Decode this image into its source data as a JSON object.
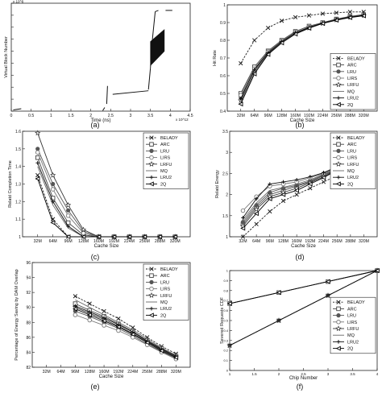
{
  "chart_data": [
    {
      "id": "a",
      "type": "line",
      "caption": "(a)",
      "xlabel": "Time (ns)",
      "ylabel": "Virtual Block Number",
      "x_exponent": "x 10^12",
      "y_exponent": "x 10^8",
      "xlim": [
        0,
        4.5
      ],
      "ylim": [
        0,
        4.5
      ],
      "xticks": [
        "0",
        "0.5",
        "1",
        "1.5",
        "2",
        "2.5",
        "3",
        "3.5",
        "4",
        "4.5"
      ],
      "yticks": [
        "0",
        "0.5",
        "1",
        "1.5",
        "2",
        "2.5",
        "3",
        "3.5",
        "4",
        "4.5"
      ],
      "tick_values": [
        0,
        0.5,
        1,
        1.5,
        2,
        2.5,
        3,
        3.5,
        4,
        4.5
      ],
      "segments": [
        [
          [
            0.05,
            0.05
          ],
          [
            0.25,
            0.1
          ]
        ],
        [
          [
            2.3,
            0.02
          ],
          [
            2.35,
            0.15
          ]
        ],
        [
          [
            2.4,
            0.3
          ],
          [
            2.42,
            1.05
          ]
        ],
        [
          [
            2.55,
            0.7
          ],
          [
            3.45,
            0.85
          ]
        ],
        [
          [
            3.45,
            0.9
          ],
          [
            3.5,
            1.8
          ]
        ],
        [
          [
            3.5,
            1.8
          ],
          [
            3.55,
            3.0
          ]
        ],
        [
          [
            3.55,
            3.0
          ],
          [
            3.62,
            4.15
          ]
        ],
        [
          [
            3.62,
            4.15
          ],
          [
            3.7,
            4.2
          ]
        ],
        [
          [
            3.88,
            4.2
          ],
          [
            4.05,
            4.2
          ]
        ]
      ],
      "dense_band": [
        [
          3.5,
          2.9
        ],
        [
          3.85,
          3.4
        ],
        [
          3.85,
          2.5
        ],
        [
          3.5,
          1.9
        ]
      ]
    },
    {
      "id": "b",
      "type": "line",
      "caption": "(b)",
      "xlabel": "Cache Size",
      "ylabel": "Hit Rate",
      "categories": [
        "32M",
        "64M",
        "96M",
        "128M",
        "160M",
        "192M",
        "224M",
        "256M",
        "288M",
        "320M"
      ],
      "ylim": [
        0.4,
        1.0
      ],
      "yticks": [
        "0.4",
        "0.5",
        "0.6",
        "0.7",
        "0.8",
        "0.9",
        "1"
      ],
      "tick_values": [
        0.4,
        0.5,
        0.6,
        0.7,
        0.8,
        0.9,
        1.0
      ],
      "legend_position": "lower-right",
      "series": [
        {
          "name": "BELADY",
          "values": [
            0.67,
            0.8,
            0.87,
            0.91,
            0.93,
            0.94,
            0.95,
            0.955,
            0.96,
            0.96
          ]
        },
        {
          "name": "ARC",
          "values": [
            0.5,
            0.65,
            0.74,
            0.8,
            0.85,
            0.88,
            0.9,
            0.92,
            0.935,
            0.945
          ]
        },
        {
          "name": "LRU",
          "values": [
            0.48,
            0.63,
            0.73,
            0.79,
            0.84,
            0.87,
            0.9,
            0.915,
            0.93,
            0.94
          ]
        },
        {
          "name": "LIRS",
          "values": [
            0.49,
            0.64,
            0.735,
            0.795,
            0.845,
            0.875,
            0.9,
            0.918,
            0.932,
            0.942
          ]
        },
        {
          "name": "LRFU",
          "values": [
            0.46,
            0.62,
            0.725,
            0.79,
            0.84,
            0.87,
            0.895,
            0.915,
            0.93,
            0.94
          ]
        },
        {
          "name": "MQ",
          "values": [
            0.45,
            0.62,
            0.73,
            0.79,
            0.84,
            0.87,
            0.9,
            0.915,
            0.93,
            0.94
          ]
        },
        {
          "name": "LRU2",
          "values": [
            0.47,
            0.635,
            0.73,
            0.792,
            0.842,
            0.872,
            0.898,
            0.916,
            0.931,
            0.941
          ]
        },
        {
          "name": "2Q",
          "values": [
            0.44,
            0.61,
            0.72,
            0.785,
            0.835,
            0.868,
            0.895,
            0.913,
            0.928,
            0.938
          ]
        }
      ]
    },
    {
      "id": "c",
      "type": "line",
      "caption": "(c)",
      "xlabel": "Cache Size",
      "ylabel": "Relatd Completion Time",
      "categories": [
        "32M",
        "64M",
        "96M",
        "128M",
        "160M",
        "192M",
        "224M",
        "256M",
        "288M",
        "320M"
      ],
      "ylim": [
        1,
        1.6
      ],
      "yticks": [
        "1",
        "1.1",
        "1.2",
        "1.3",
        "1.4",
        "1.5",
        "1.6"
      ],
      "tick_values": [
        1,
        1.1,
        1.2,
        1.3,
        1.4,
        1.5,
        1.6
      ],
      "legend_position": "top-right",
      "series": [
        {
          "name": "BELADY",
          "values": [
            1.35,
            1.1,
            1.0,
            1.0,
            1.0,
            1.0,
            1.0,
            1.0,
            1.0,
            1.0
          ]
        },
        {
          "name": "ARC",
          "values": [
            1.45,
            1.22,
            1.08,
            1.01,
            1.0,
            1.0,
            1.0,
            1.0,
            1.0,
            1.0
          ]
        },
        {
          "name": "LRU",
          "values": [
            1.5,
            1.3,
            1.15,
            1.03,
            1.0,
            1.0,
            1.0,
            1.0,
            1.0,
            1.0
          ]
        },
        {
          "name": "LIRS",
          "values": [
            1.48,
            1.27,
            1.12,
            1.02,
            1.0,
            1.0,
            1.0,
            1.0,
            1.0,
            1.0
          ]
        },
        {
          "name": "LRFU",
          "values": [
            1.59,
            1.35,
            1.18,
            1.04,
            1.0,
            1.0,
            1.0,
            1.0,
            1.0,
            1.0
          ]
        },
        {
          "name": "MQ",
          "values": [
            1.4,
            1.18,
            1.05,
            1.0,
            1.0,
            1.0,
            1.0,
            1.0,
            1.0,
            1.0
          ]
        },
        {
          "name": "LRU2",
          "values": [
            1.42,
            1.2,
            1.06,
            1.0,
            1.0,
            1.0,
            1.0,
            1.0,
            1.0,
            1.0
          ]
        },
        {
          "name": "2Q",
          "values": [
            1.33,
            1.08,
            1.0,
            1.0,
            1.0,
            1.0,
            1.0,
            1.0,
            1.0,
            1.0
          ]
        }
      ]
    },
    {
      "id": "d",
      "type": "line",
      "caption": "(d)",
      "xlabel": "Cache Size",
      "ylabel": "Relatd Energy",
      "categories": [
        "32M",
        "64M",
        "96M",
        "128M",
        "160M",
        "192M",
        "224M",
        "256M",
        "288M",
        "320M"
      ],
      "ylim": [
        1,
        3.5
      ],
      "yticks": [
        "1",
        "1.5",
        "2",
        "2.5",
        "3",
        "3.5"
      ],
      "tick_values": [
        1,
        1.5,
        2,
        2.5,
        3,
        3.5
      ],
      "legend_position": "top-right",
      "series": [
        {
          "name": "BELADY",
          "values": [
            1.0,
            1.3,
            1.6,
            1.85,
            2.0,
            2.15,
            2.3,
            2.45,
            2.6,
            2.75
          ]
        },
        {
          "name": "ARC",
          "values": [
            1.3,
            1.7,
            2.0,
            2.1,
            2.2,
            2.3,
            2.45,
            2.6,
            2.8,
            3.0
          ]
        },
        {
          "name": "LRU",
          "values": [
            1.35,
            1.75,
            2.05,
            2.15,
            2.22,
            2.32,
            2.47,
            2.62,
            2.82,
            3.02
          ]
        },
        {
          "name": "LIRS",
          "values": [
            1.62,
            1.95,
            2.2,
            2.25,
            2.3,
            2.4,
            2.5,
            2.65,
            2.83,
            3.03
          ]
        },
        {
          "name": "LRFU",
          "values": [
            1.25,
            1.65,
            1.95,
            2.05,
            2.15,
            2.28,
            2.42,
            2.6,
            2.8,
            3.0
          ]
        },
        {
          "name": "MQ",
          "values": [
            1.4,
            1.8,
            2.1,
            2.17,
            2.25,
            2.35,
            2.48,
            2.63,
            2.82,
            3.02
          ]
        },
        {
          "name": "LRU2",
          "values": [
            1.45,
            1.9,
            2.25,
            2.3,
            2.35,
            2.42,
            2.52,
            2.66,
            2.84,
            3.04
          ]
        },
        {
          "name": "2Q",
          "values": [
            1.2,
            1.55,
            1.9,
            2.0,
            2.1,
            2.25,
            2.4,
            2.58,
            2.78,
            2.98
          ]
        }
      ]
    },
    {
      "id": "e",
      "type": "line",
      "caption": "(e)",
      "xlabel": "Cache Size",
      "ylabel": "Percentage of Energy Saving by DAM Overlap",
      "categories": [
        "32M",
        "64M",
        "96M",
        "128M",
        "160M",
        "192M",
        "224M",
        "256M",
        "288M",
        "320M"
      ],
      "ylim": [
        82,
        96
      ],
      "yticks": [
        "82",
        "84",
        "86",
        "88",
        "90",
        "92",
        "94",
        "96"
      ],
      "tick_values": [
        82,
        84,
        86,
        88,
        90,
        92,
        94,
        96
      ],
      "legend_position": "top-right",
      "series": [
        {
          "name": "BELADY",
          "values": [
            null,
            null,
            91.5,
            90.5,
            89.5,
            88.5,
            87.3,
            86.0,
            84.8,
            83.8
          ]
        },
        {
          "name": "ARC",
          "values": [
            null,
            null,
            90.5,
            89.6,
            88.8,
            87.8,
            86.8,
            85.6,
            84.5,
            83.5
          ]
        },
        {
          "name": "LRU",
          "values": [
            null,
            null,
            89.5,
            88.8,
            88.0,
            87.2,
            86.2,
            85.1,
            84.1,
            83.2
          ]
        },
        {
          "name": "LIRS",
          "values": [
            null,
            null,
            89.0,
            88.3,
            87.6,
            86.9,
            86.0,
            85.0,
            84.0,
            83.1
          ]
        },
        {
          "name": "LRFU",
          "values": [
            null,
            null,
            90.0,
            89.2,
            88.4,
            87.5,
            86.5,
            85.4,
            84.3,
            83.4
          ]
        },
        {
          "name": "MQ",
          "values": [
            null,
            null,
            91.0,
            90.0,
            89.0,
            88.0,
            87.0,
            85.8,
            84.6,
            83.6
          ]
        },
        {
          "name": "LRU2",
          "values": [
            null,
            null,
            90.2,
            89.4,
            88.6,
            87.7,
            86.7,
            85.5,
            84.4,
            83.5
          ]
        },
        {
          "name": "2Q",
          "values": [
            null,
            null,
            89.8,
            89.0,
            88.2,
            87.4,
            86.4,
            85.3,
            84.2,
            83.3
          ]
        }
      ]
    },
    {
      "id": "f",
      "type": "line",
      "caption": "(f)",
      "xlabel": "Chip   Number",
      "ylabel": "Severed   Requests   CDF",
      "x": [
        1,
        2,
        3,
        4
      ],
      "xlim": [
        1,
        4
      ],
      "xticks": [
        "1",
        "1.5",
        "2",
        "2.5",
        "3",
        "3.5",
        "4"
      ],
      "xtick_values": [
        1,
        1.5,
        2,
        2.5,
        3,
        3.5,
        4
      ],
      "ylim": [
        0,
        1
      ],
      "yticks": [
        "0",
        "0.1",
        "0.2",
        "0.3",
        "0.4",
        "0.5",
        "0.6",
        "0.7",
        "0.8",
        "0.9",
        "1"
      ],
      "tick_values": [
        0,
        0.1,
        0.2,
        0.3,
        0.4,
        0.5,
        0.6,
        0.7,
        0.8,
        0.9,
        1
      ],
      "legend_position": "center-right",
      "series": [
        {
          "name": "BELADY",
          "values": [
            0.25,
            0.5,
            0.75,
            1.0
          ]
        },
        {
          "name": "ARC",
          "values": [
            0.67,
            0.78,
            0.89,
            1.0
          ]
        },
        {
          "name": "LRU",
          "values": [
            0.67,
            0.78,
            0.89,
            1.0
          ]
        },
        {
          "name": "LIRS",
          "values": [
            0.67,
            0.78,
            0.89,
            1.0
          ]
        },
        {
          "name": "LRFU",
          "values": [
            0.25,
            0.5,
            0.75,
            1.0
          ]
        },
        {
          "name": "MQ",
          "values": [
            0.25,
            0.5,
            0.75,
            1.0
          ]
        },
        {
          "name": "LRU2",
          "values": [
            0.25,
            0.5,
            0.75,
            1.0
          ]
        },
        {
          "name": "2Q",
          "values": [
            0.67,
            0.78,
            0.89,
            1.0
          ]
        }
      ]
    }
  ]
}
